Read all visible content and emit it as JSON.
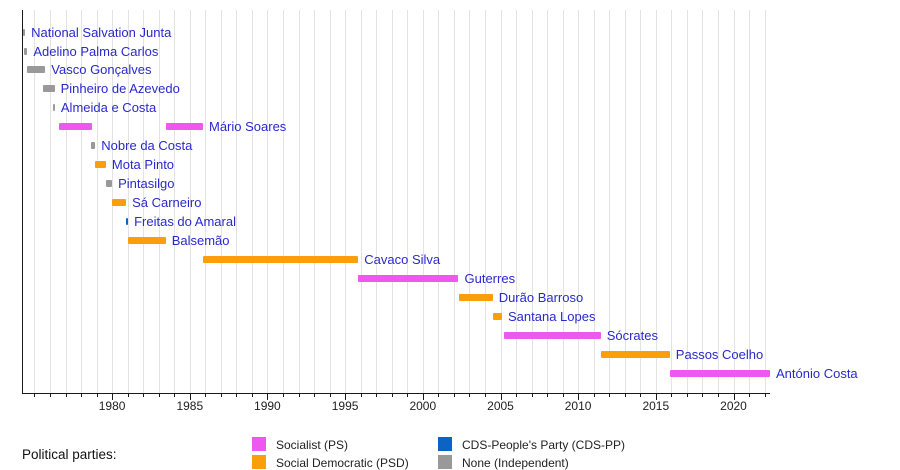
{
  "colors": {
    "PS": "#ee58ee",
    "PSD": "#fa9e0b",
    "CDS": "#0b63c6",
    "IND": "#999999",
    "label_text": "#2929cc",
    "gridline": "#e3e3e3",
    "axis": "#1a1a1a"
  },
  "chart_data": {
    "type": "bar",
    "subtype": "gantt-timeline",
    "title": "",
    "xlabel": "",
    "ylabel": "",
    "axis": {
      "xmin": 1974.2,
      "xmax": 2022.35,
      "major_ticks": [
        1980,
        1985,
        1990,
        1995,
        2000,
        2005,
        2010,
        2015,
        2020
      ],
      "major_tick_labels": [
        "1980",
        "1985",
        "1990",
        "1995",
        "2000",
        "2005",
        "2010",
        "2015",
        "2020"
      ],
      "minor_tick_interval_years": 1,
      "grid": true,
      "grid_interval_years": 1
    },
    "rows": [
      {
        "name": "National Salvation Junta",
        "party": "IND",
        "segments": [
          [
            1974.25,
            1974.4
          ]
        ]
      },
      {
        "name": "Adelino Palma Carlos",
        "party": "IND",
        "segments": [
          [
            1974.3,
            1974.55
          ]
        ]
      },
      {
        "name": "Vasco Gonçalves",
        "party": "IND",
        "segments": [
          [
            1974.55,
            1975.7
          ]
        ]
      },
      {
        "name": "Pinheiro de Azevedo",
        "party": "IND",
        "segments": [
          [
            1975.55,
            1976.3
          ]
        ]
      },
      {
        "name": "Almeida e Costa",
        "party": "IND",
        "segments": [
          [
            1976.2,
            1976.32
          ]
        ]
      },
      {
        "name": "Mário Soares",
        "party": "PS",
        "segments": [
          [
            1976.6,
            1978.7
          ],
          [
            1983.45,
            1985.85
          ]
        ]
      },
      {
        "name": "Nobre da Costa",
        "party": "IND",
        "segments": [
          [
            1978.65,
            1978.92
          ]
        ]
      },
      {
        "name": "Mota Pinto",
        "party": "PSD",
        "segments": [
          [
            1978.92,
            1979.6
          ]
        ]
      },
      {
        "name": "Pintasilgo",
        "party": "IND",
        "segments": [
          [
            1979.62,
            1980.0
          ]
        ]
      },
      {
        "name": "Sá Carneiro",
        "party": "PSD",
        "segments": [
          [
            1980.0,
            1980.9
          ]
        ]
      },
      {
        "name": "Freitas do Amaral",
        "party": "CDS",
        "segments": [
          [
            1980.9,
            1981.03
          ]
        ]
      },
      {
        "name": "Balsemão",
        "party": "PSD",
        "segments": [
          [
            1981.0,
            1983.45
          ]
        ]
      },
      {
        "name": "Cavaco Silva",
        "party": "PSD",
        "segments": [
          [
            1985.85,
            1995.85
          ]
        ]
      },
      {
        "name": "Guterres",
        "party": "PS",
        "segments": [
          [
            1995.85,
            2002.3
          ]
        ]
      },
      {
        "name": "Durão Barroso",
        "party": "PSD",
        "segments": [
          [
            2002.3,
            2004.5
          ]
        ]
      },
      {
        "name": "Santana Lopes",
        "party": "PSD",
        "segments": [
          [
            2004.5,
            2005.1
          ]
        ]
      },
      {
        "name": "Sócrates",
        "party": "PS",
        "segments": [
          [
            2005.2,
            2011.45
          ]
        ]
      },
      {
        "name": "Passos Coelho",
        "party": "PSD",
        "segments": [
          [
            2011.45,
            2015.9
          ]
        ]
      },
      {
        "name": "António Costa",
        "party": "PS",
        "segments": [
          [
            2015.9,
            2022.35
          ]
        ]
      }
    ]
  },
  "legend": {
    "heading": "Political parties:",
    "position": "bottom",
    "entries": [
      {
        "label": "Socialist (PS)",
        "party": "PS"
      },
      {
        "label": "Social Democratic (PSD)",
        "party": "PSD"
      },
      {
        "label": "CDS-People's Party (CDS-PP)",
        "party": "CDS"
      },
      {
        "label": "None (Independent)",
        "party": "IND"
      }
    ]
  }
}
